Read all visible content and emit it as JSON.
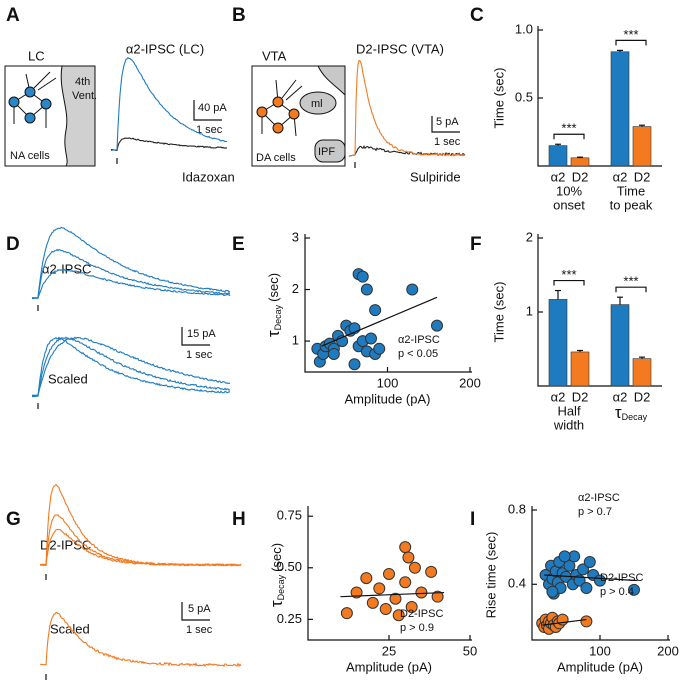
{
  "panels": {
    "A": {
      "label": "A",
      "region": "LC",
      "ventricle": [
        "4th",
        "Vent."
      ],
      "cells": "NA cells",
      "trace_title": "α2-IPSC (LC)",
      "scale_y": "40 pA",
      "scale_x": "1 sec",
      "drug": "Idazoxan"
    },
    "B": {
      "label": "B",
      "region": "VTA",
      "tract": "ml",
      "cells": "DA cells",
      "nucleus": "IPF",
      "trace_title": "D2-IPSC (VTA)",
      "scale_y": "5 pA",
      "scale_x": "1 sec",
      "drug": "Sulpiride"
    },
    "D": {
      "label": "D",
      "trace_title": "α2-IPSC",
      "scale_y": "15 pA",
      "scale_x": "1 sec",
      "scaled": "Scaled"
    },
    "G": {
      "label": "G",
      "trace_title": "D2-IPSC",
      "scale_y": "5 pA",
      "scale_x": "1 sec",
      "scaled": "Scaled"
    }
  },
  "chart_data": [
    {
      "type": "bar",
      "label": "C",
      "y_label": "Time (sec)",
      "categories": [
        [
          "10%",
          "onset"
        ],
        [
          "Time",
          "to peak"
        ]
      ],
      "series": [
        {
          "name": "α2",
          "color": "#1f7bbf",
          "values": [
            0.15,
            0.84
          ],
          "errors": [
            0.01,
            0.01
          ]
        },
        {
          "name": "D2",
          "color": "#f47a20",
          "values": [
            0.06,
            0.29
          ],
          "errors": [
            0.005,
            0.01
          ]
        }
      ],
      "significance": [
        "***",
        "***"
      ],
      "ylim": [
        0,
        1
      ],
      "yticks": [
        0.5,
        {
          "value": 1,
          "label": "1.0"
        }
      ]
    },
    {
      "type": "scatter",
      "label": "E",
      "x_label": "Amplitude (pA)",
      "y_label": {
        "symbol": "τ",
        "subscript": "Decay",
        "unit": "(sec)"
      },
      "xlim": [
        0,
        200
      ],
      "xticks": [
        100,
        200
      ],
      "ylim": [
        0.4,
        3
      ],
      "yticks": [
        1,
        2,
        3
      ],
      "series": [
        {
          "name": "α2-IPSC",
          "annotation": "p < 0.05",
          "color": "#1f7bbf",
          "x": [
            15,
            18,
            22,
            25,
            30,
            35,
            35,
            40,
            45,
            50,
            55,
            60,
            60,
            65,
            65,
            70,
            70,
            75,
            75,
            80,
            85,
            85,
            90,
            130,
            160
          ],
          "values": [
            0.85,
            0.6,
            0.75,
            0.9,
            0.95,
            0.85,
            0.75,
            1.1,
            1.0,
            1.3,
            1.2,
            1.25,
            0.55,
            0.9,
            2.3,
            2.25,
            1.0,
            0.8,
            2.0,
            1.05,
            0.75,
            1.6,
            0.85,
            2.0,
            1.3
          ],
          "fit": {
            "x": [
              20,
              160
            ],
            "values": [
              0.9,
              1.85
            ]
          }
        }
      ]
    },
    {
      "type": "bar",
      "label": "F",
      "y_label": "Time (sec)",
      "categories": [
        [
          "Half",
          "width"
        ],
        {
          "symbol": "τ",
          "subscript": "Decay"
        }
      ],
      "series": [
        {
          "name": "α2",
          "color": "#1f7bbf",
          "values": [
            1.17,
            1.1
          ],
          "errors": [
            0.12,
            0.1
          ]
        },
        {
          "name": "D2",
          "color": "#f47a20",
          "values": [
            0.46,
            0.37
          ],
          "errors": [
            0.02,
            0.02
          ]
        }
      ],
      "significance": [
        "***",
        "***"
      ],
      "ylim": [
        0,
        2
      ],
      "yticks": [
        1,
        2
      ]
    },
    {
      "type": "scatter",
      "label": "H",
      "x_label": "Amplitude (pA)",
      "y_label": {
        "symbol": "τ",
        "subscript": "Decay",
        "unit": "(sec)"
      },
      "xlim": [
        0,
        50
      ],
      "xticks": [
        25,
        50
      ],
      "ylim": [
        0.15,
        0.78
      ],
      "yticks": [
        0.25,
        {
          "value": 0.5,
          "label": "0.50"
        },
        0.75
      ],
      "series": [
        {
          "name": "D2-IPSC",
          "annotation": "p > 0.9",
          "color": "#f47a20",
          "x": [
            12,
            15,
            18,
            20,
            22,
            24,
            25,
            27,
            28,
            30,
            30,
            32,
            33,
            35,
            38,
            40,
            31
          ],
          "values": [
            0.28,
            0.38,
            0.45,
            0.33,
            0.4,
            0.3,
            0.47,
            0.35,
            0.27,
            0.43,
            0.6,
            0.31,
            0.5,
            0.38,
            0.48,
            0.36,
            0.55
          ],
          "fit": {
            "x": [
              10,
              42
            ],
            "values": [
              0.36,
              0.38
            ]
          }
        }
      ]
    },
    {
      "type": "scatter",
      "label": "I",
      "x_label": "Amplitude (pA)",
      "y_label": "Rise time (sec)",
      "xlim": [
        0,
        200
      ],
      "xticks": [
        100,
        200
      ],
      "ylim": [
        0.1,
        0.8
      ],
      "yticks": [
        0.4,
        0.8
      ],
      "series": [
        {
          "name": "α2-IPSC",
          "annotation": "p > 0.7",
          "color": "#1f7bbf",
          "x": [
            20,
            25,
            28,
            30,
            32,
            35,
            38,
            40,
            42,
            45,
            50,
            55,
            60,
            62,
            65,
            70,
            75,
            80,
            85,
            90,
            30,
            48,
            100,
            150
          ],
          "values": [
            0.45,
            0.4,
            0.5,
            0.43,
            0.35,
            0.47,
            0.41,
            0.52,
            0.38,
            0.46,
            0.44,
            0.5,
            0.4,
            0.55,
            0.45,
            0.42,
            0.48,
            0.38,
            0.52,
            0.45,
            0.36,
            0.55,
            0.42,
            0.37
          ],
          "fit": {
            "x": [
              18,
              155
            ],
            "values": [
              0.45,
              0.42
            ]
          }
        },
        {
          "name": "D2-IPSC",
          "annotation": "p > 0.4",
          "color": "#f47a20",
          "x": [
            15,
            18,
            20,
            22,
            25,
            25,
            28,
            30,
            32,
            35,
            38,
            40,
            45,
            80
          ],
          "values": [
            0.19,
            0.17,
            0.21,
            0.18,
            0.2,
            0.16,
            0.19,
            0.22,
            0.18,
            0.17,
            0.2,
            0.19,
            0.21,
            0.2
          ],
          "fit": {
            "x": [
              15,
              80
            ],
            "values": [
              0.18,
              0.21
            ]
          }
        }
      ]
    }
  ]
}
